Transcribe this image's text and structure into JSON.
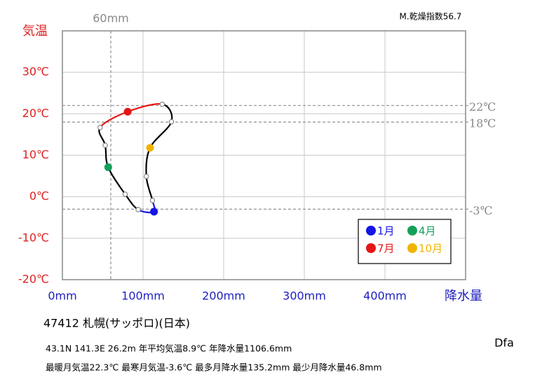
{
  "chart_data": {
    "type": "climograph",
    "corner_note": "M.乾燥指数56.7",
    "y_title": "気温",
    "x_title": "降水量",
    "categories": [
      "1月",
      null,
      null,
      "4月",
      null,
      null,
      "7月",
      null,
      null,
      "10月",
      null,
      null
    ],
    "x": [
      113.6,
      94.0,
      77.8,
      56.8,
      53.1,
      46.8,
      81.0,
      123.8,
      135.2,
      108.7,
      104.1,
      111.7
    ],
    "values": [
      -3.6,
      -3.1,
      0.6,
      7.1,
      12.4,
      16.7,
      20.5,
      22.3,
      18.1,
      11.8,
      4.9,
      -0.9
    ],
    "point_colors": [
      "#1515e6",
      "#ffffff",
      "#ffffff",
      "#14a05a",
      "#ffffff",
      "#ffffff",
      "#e61515",
      "#ffffff",
      "#ffffff",
      "#f0b400",
      "#ffffff",
      "#ffffff"
    ],
    "segment_colors": [
      "#1515e6",
      "#000000",
      "#000000",
      "#000000",
      "#000000",
      "#e61515",
      "#e61515",
      "#000000",
      "#000000",
      "#000000",
      "#000000",
      "#1515e6"
    ],
    "xlim": [
      0,
      500
    ],
    "ylim": [
      -20,
      40
    ],
    "xticks": [
      {
        "value": 0,
        "label": "0mm"
      },
      {
        "value": 100,
        "label": "100mm"
      },
      {
        "value": 200,
        "label": "200mm"
      },
      {
        "value": 300,
        "label": "300mm"
      },
      {
        "value": 400,
        "label": "400mm"
      }
    ],
    "yticks": [
      {
        "value": -20,
        "label": "-20℃"
      },
      {
        "value": -10,
        "label": "-10℃"
      },
      {
        "value": 0,
        "label": "0℃"
      },
      {
        "value": 10,
        "label": "10℃"
      },
      {
        "value": 20,
        "label": "20℃"
      },
      {
        "value": 30,
        "label": "30℃"
      }
    ],
    "grid": true,
    "x_reference_lines": [
      {
        "value": 60,
        "label": "60mm"
      }
    ],
    "y_reference_lines": [
      {
        "value": 22,
        "label": "22℃"
      },
      {
        "value": 18,
        "label": "18℃"
      },
      {
        "value": -3,
        "label": "-3℃"
      }
    ],
    "station": "47412  札幌(サッポロ)(日本)",
    "info_line_1": "43.1N  141.3E 26.2m  年平均気温8.9℃ 年降水量1106.6mm",
    "info_line_2": "最暖月気温22.3℃ 最寒月気温-3.6℃ 最多月降水量135.2mm 最少月降水量46.8mm",
    "climate_class": "Dfa"
  }
}
